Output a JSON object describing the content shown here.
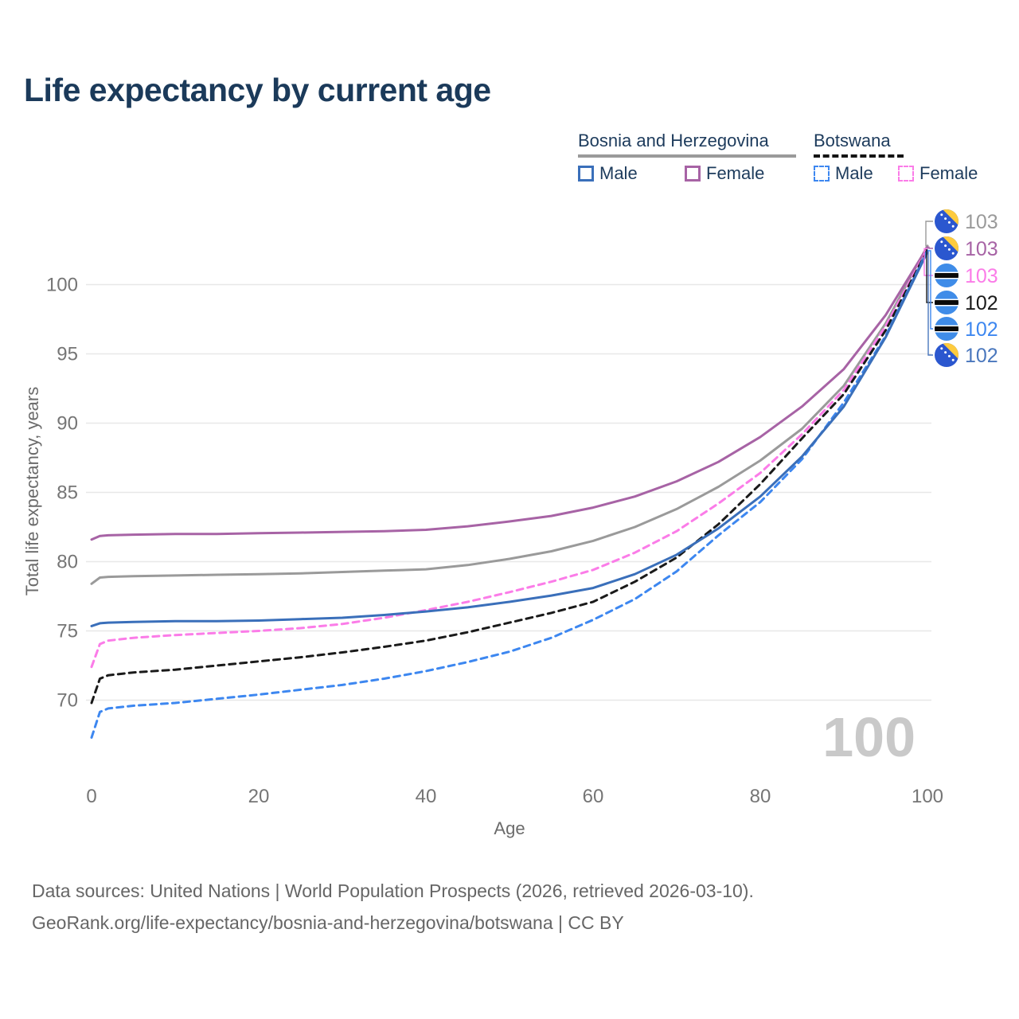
{
  "title": "Life expectancy by current age",
  "watermark_age": "100",
  "legend": {
    "groups": [
      {
        "country": "Bosnia and Herzegovina",
        "line_style": "solid",
        "underline_color": "#9a9a9a",
        "items": [
          {
            "label": "Male",
            "color": "#3a6fba"
          },
          {
            "label": "Female",
            "color": "#a763a5"
          }
        ]
      },
      {
        "country": "Botswana",
        "line_style": "dashed",
        "underline_color": "#141414",
        "items": [
          {
            "label": "Male",
            "color": "#3d87f0"
          },
          {
            "label": "Female",
            "color": "#fb7ce8"
          }
        ]
      }
    ]
  },
  "chart_data": {
    "type": "line",
    "title": "Life expectancy by current age",
    "xlabel": "Age",
    "ylabel": "Total life expectancy, years",
    "xlim": [
      0,
      100
    ],
    "ylim": [
      66.5,
      103.5
    ],
    "xticks": [
      0,
      20,
      40,
      60,
      80,
      100
    ],
    "yticks": [
      70,
      75,
      80,
      85,
      90,
      95,
      100
    ],
    "grid": "horizontal-only",
    "x": [
      0,
      1,
      2,
      5,
      10,
      15,
      20,
      25,
      30,
      35,
      40,
      45,
      50,
      55,
      60,
      65,
      70,
      75,
      80,
      85,
      90,
      95,
      100
    ],
    "series": [
      {
        "name": "Bosnia and Herzegovina — Both sexes",
        "country": "Bosnia and Herzegovina",
        "sex": "all",
        "color": "#9a9a9a",
        "dash": "solid",
        "values": [
          78.4,
          78.85,
          78.9,
          78.95,
          79.0,
          79.05,
          79.1,
          79.15,
          79.25,
          79.35,
          79.45,
          79.75,
          80.2,
          80.75,
          81.5,
          82.5,
          83.8,
          85.4,
          87.3,
          89.6,
          92.7,
          97.2,
          102.8
        ],
        "end_label": "103"
      },
      {
        "name": "Bosnia and Herzegovina — Female",
        "country": "Bosnia and Herzegovina",
        "sex": "female",
        "color": "#a763a5",
        "dash": "solid",
        "values": [
          81.6,
          81.85,
          81.9,
          81.95,
          82.0,
          82.0,
          82.05,
          82.1,
          82.15,
          82.2,
          82.3,
          82.55,
          82.9,
          83.3,
          83.9,
          84.7,
          85.8,
          87.2,
          89.0,
          91.2,
          93.9,
          97.8,
          102.7
        ],
        "end_label": "103"
      },
      {
        "name": "Botswana — Female",
        "country": "Botswana",
        "sex": "female",
        "color": "#fb7ce8",
        "dash": "dashed",
        "values": [
          72.4,
          74.05,
          74.3,
          74.5,
          74.7,
          74.85,
          75.0,
          75.2,
          75.5,
          75.95,
          76.5,
          77.1,
          77.8,
          78.55,
          79.4,
          80.65,
          82.2,
          84.2,
          86.4,
          89.2,
          92.4,
          97.0,
          102.6
        ],
        "end_label": "103"
      },
      {
        "name": "Botswana — Both sexes",
        "country": "Botswana",
        "sex": "all",
        "color": "#1a1a1a",
        "dash": "dashed",
        "values": [
          69.8,
          71.55,
          71.8,
          72.0,
          72.2,
          72.5,
          72.8,
          73.1,
          73.45,
          73.85,
          74.3,
          74.9,
          75.6,
          76.3,
          77.1,
          78.55,
          80.3,
          82.7,
          85.6,
          88.9,
          92.1,
          96.7,
          102.5
        ],
        "end_label": "102"
      },
      {
        "name": "Botswana — Male",
        "country": "Botswana",
        "sex": "male",
        "color": "#3d87f0",
        "dash": "dashed",
        "values": [
          67.3,
          69.15,
          69.4,
          69.6,
          69.8,
          70.1,
          70.4,
          70.75,
          71.1,
          71.55,
          72.1,
          72.75,
          73.5,
          74.5,
          75.8,
          77.3,
          79.3,
          81.9,
          84.3,
          87.4,
          91.5,
          96.3,
          102.45
        ],
        "end_label": "102"
      },
      {
        "name": "Bosnia and Herzegovina — Male",
        "country": "Bosnia and Herzegovina",
        "sex": "male",
        "color": "#3a6fba",
        "dash": "solid",
        "values": [
          75.35,
          75.55,
          75.6,
          75.65,
          75.7,
          75.7,
          75.75,
          75.85,
          75.95,
          76.15,
          76.4,
          76.7,
          77.1,
          77.55,
          78.1,
          79.1,
          80.5,
          82.4,
          84.7,
          87.6,
          91.2,
          96.2,
          102.35
        ],
        "end_label": "102"
      }
    ],
    "end_label_rows": [
      {
        "flag": "bosnia-and-herzegovina",
        "value": "103",
        "color": "#9a9a9a",
        "series_index": 0
      },
      {
        "flag": "bosnia-and-herzegovina",
        "value": "103",
        "color": "#a763a5",
        "series_index": 1
      },
      {
        "flag": "botswana",
        "value": "103",
        "color": "#fb7ce8",
        "series_index": 2
      },
      {
        "flag": "botswana",
        "value": "102",
        "color": "#1a1a1a",
        "series_index": 3
      },
      {
        "flag": "botswana",
        "value": "102",
        "color": "#3d87f0",
        "series_index": 4
      },
      {
        "flag": "bosnia-and-herzegovina",
        "value": "102",
        "color": "#4a77bd",
        "series_index": 5
      }
    ]
  },
  "footer": {
    "line1": "Data sources: United Nations | World Population Prospects (2026, retrieved 2026-03-10).",
    "line2": "GeoRank.org/life-expectancy/bosnia-and-herzegovina/botswana | CC BY"
  },
  "colors": {
    "title": "#1b3a5a",
    "legend_text": "#1d3b5c",
    "grid": "#e8e8e8",
    "tick_label": "#757575",
    "watermark": "#c9c9c9",
    "flag_ba_blue": "#2b57cf",
    "flag_ba_yellow": "#fecb3e",
    "flag_bw_blue": "#3f8ce8"
  }
}
